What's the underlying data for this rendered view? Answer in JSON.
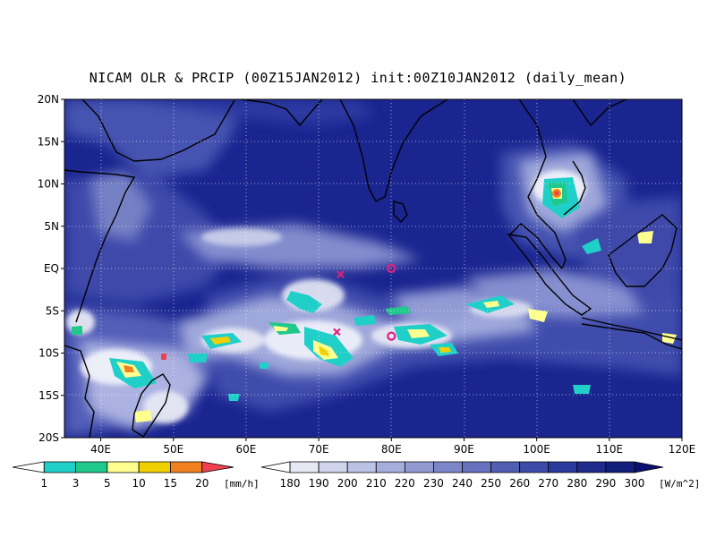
{
  "title": "NICAM OLR & PRCIP (00Z15JAN2012) init:00Z10JAN2012 (daily_mean)",
  "map": {
    "lon_range": [
      35,
      120
    ],
    "lat_range": [
      -20,
      20
    ],
    "lat_labels": [
      "20N",
      "15N",
      "10N",
      "5N",
      "EQ",
      "5S",
      "10S",
      "15S",
      "20S"
    ],
    "lon_labels": [
      "40E",
      "50E",
      "60E",
      "70E",
      "80E",
      "90E",
      "100E",
      "110E",
      "120E"
    ],
    "markers": [
      {
        "symbol": "x",
        "lon": 73.0,
        "lat": -0.7,
        "color": "#e0207f"
      },
      {
        "symbol": "o",
        "lon": 80.0,
        "lat": 0.0,
        "color": "#e0207f"
      },
      {
        "symbol": "x",
        "lon": 72.5,
        "lat": -7.5,
        "color": "#e0207f"
      },
      {
        "symbol": "o",
        "lon": 80.0,
        "lat": -8.0,
        "color": "#e0207f"
      }
    ]
  },
  "precip_colorbar": {
    "labels": [
      "1",
      "3",
      "5",
      "10",
      "15",
      "20"
    ],
    "unit": "[mm/h]",
    "colors": [
      "#ffffff",
      "#20d0c8",
      "#20c88c",
      "#ffff90",
      "#f0d000",
      "#f08020",
      "#f04050"
    ]
  },
  "olr_colorbar": {
    "labels": [
      "180",
      "190",
      "200",
      "210",
      "220",
      "230",
      "240",
      "250",
      "260",
      "270",
      "280",
      "290",
      "300"
    ],
    "unit": "[W/m^2]",
    "colors": [
      "#ffffff",
      "#e6e8f4",
      "#d0d4ec",
      "#bcc2e4",
      "#a6aedc",
      "#929ad2",
      "#7c86c8",
      "#6872be",
      "#505eb4",
      "#3c4aa8",
      "#2a3a9c",
      "#1e2a8c",
      "#121e7c",
      "#0a1070"
    ]
  }
}
